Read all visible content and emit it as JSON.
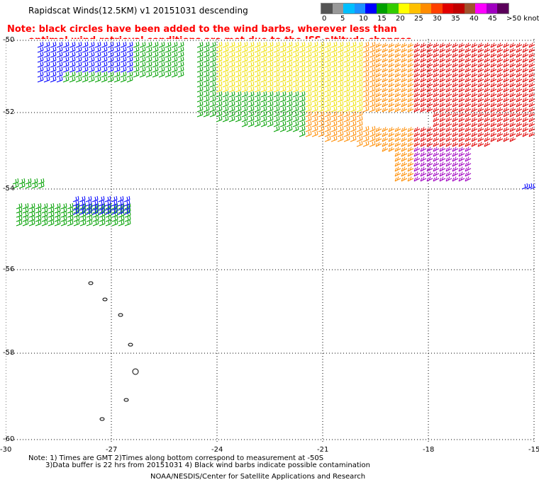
{
  "header": {
    "title": "Rapidscat Winds(12.5KM) v1 20151031 descending",
    "note_line1": "Note: black circles have been added to the wind barbs, wherever less than",
    "note_line2": "optimal wind retrieval conditions are met due to the ISS altitude changes."
  },
  "legend": {
    "labels": [
      "0",
      "5",
      "10",
      "15",
      "20",
      "25",
      "30",
      "35",
      "40",
      "45",
      ">50 knots"
    ],
    "colors": [
      "#555555",
      "#999999",
      "#00bfff",
      "#1e90ff",
      "#0000ff",
      "#00a000",
      "#33cc00",
      "#ffff00",
      "#ffc000",
      "#ff8c00",
      "#ff4000",
      "#e00000",
      "#c00000",
      "#a0522d",
      "#ff00ff",
      "#a000c0",
      "#5a005a"
    ]
  },
  "map": {
    "lat_labels": [
      "-50",
      "-52",
      "-54",
      "-56",
      "-58",
      "-60"
    ],
    "lon_labels": [
      "-30",
      "-27",
      "-24",
      "-21",
      "-18",
      "-15"
    ],
    "colors": {
      "blue": "#0000ff",
      "green": "#00a000",
      "yellow": "#f0e000",
      "orange": "#ff8c00",
      "red": "#e00000",
      "purple": "#a000c0",
      "black": "#000000"
    }
  },
  "footer": {
    "line1": "Note: 1) Times are GMT 2)Times along bottom correspond to measurement at -50S",
    "line2": "3)Data buffer is 22 hrs from 20151031 4) Black wind barbs indicate possible contamination",
    "line3": "NOAA/NESDIS/Center for Satellite Applications and Research"
  }
}
